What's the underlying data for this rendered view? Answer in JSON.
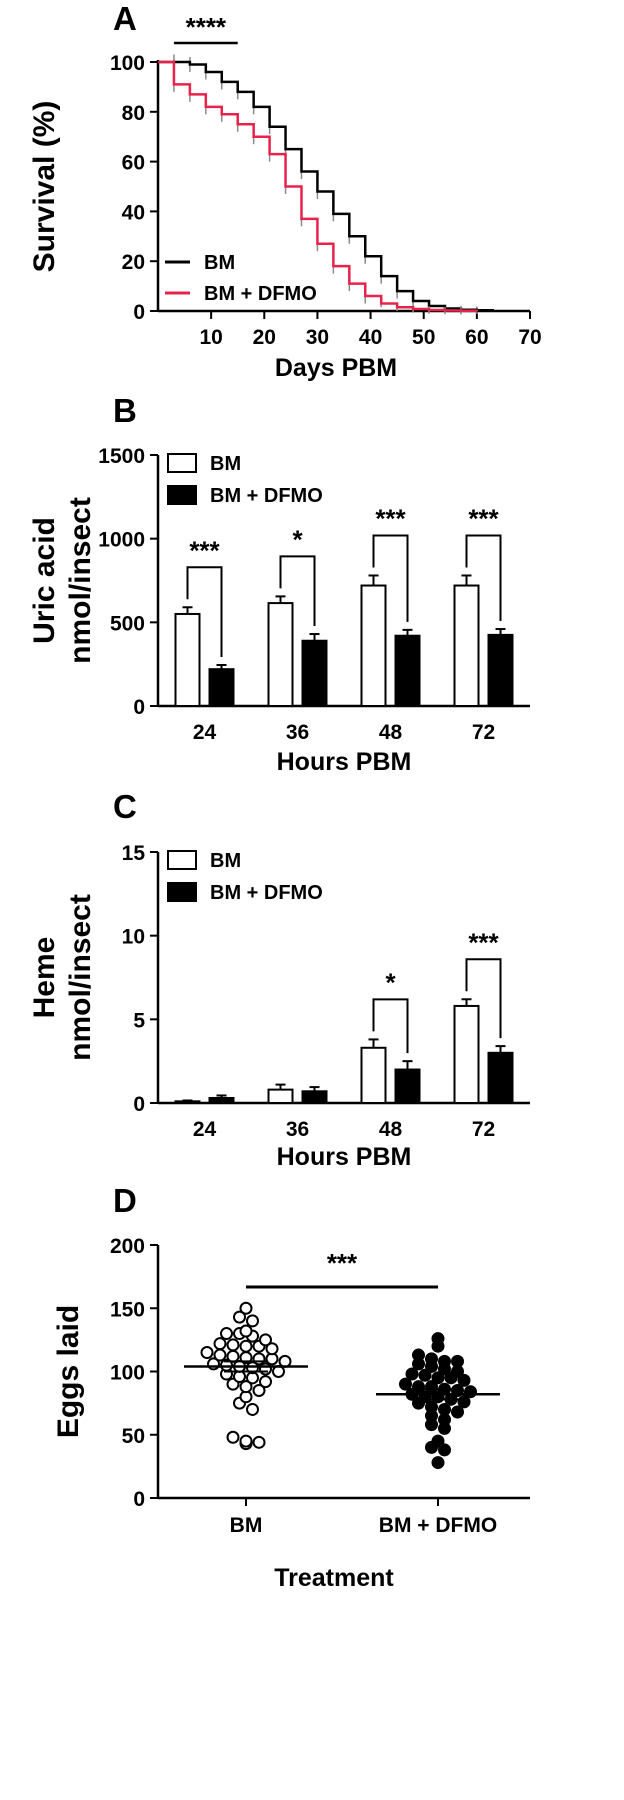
{
  "chart_data": [
    {
      "type": "line",
      "panel": "A",
      "xlabel": "Days PBM",
      "ylabel": "Survival (%)",
      "xlim": [
        0,
        70
      ],
      "ylim": [
        0,
        100
      ],
      "xticks": [
        "10",
        "20",
        "30",
        "40",
        "50",
        "60",
        "70"
      ],
      "yticks": [
        "0",
        "20",
        "40",
        "60",
        "80",
        "100"
      ],
      "legend_position": "bottom-left",
      "significance": {
        "label": "****",
        "x": [
          3,
          15
        ]
      },
      "series": [
        {
          "name": "BM",
          "color": "#000000",
          "x": [
            0,
            3,
            6,
            9,
            12,
            15,
            18,
            21,
            24,
            27,
            30,
            33,
            36,
            39,
            42,
            45,
            48,
            51,
            54,
            57,
            60,
            63
          ],
          "y": [
            100,
            100,
            99,
            96,
            92,
            88,
            82,
            74,
            65,
            56,
            48,
            39,
            30,
            22,
            14,
            8,
            4,
            2,
            1,
            0.5,
            0.3,
            0
          ]
        },
        {
          "name": "BM + DFMO",
          "color": "#e8234a",
          "x": [
            0,
            3,
            6,
            9,
            12,
            15,
            18,
            21,
            24,
            27,
            30,
            33,
            36,
            39,
            42,
            45,
            48,
            51,
            54,
            57,
            60
          ],
          "y": [
            100,
            91,
            87,
            82,
            79,
            75,
            70,
            63,
            50,
            37,
            27,
            18,
            11,
            6,
            3,
            1.5,
            0.8,
            0.4,
            0.2,
            0.1,
            0
          ]
        }
      ]
    },
    {
      "type": "bar",
      "panel": "B",
      "xlabel": "Hours PBM",
      "ylabel": [
        "Uric acid",
        "nmol/insect"
      ],
      "categories": [
        "24",
        "36",
        "48",
        "72"
      ],
      "ylim": [
        0,
        1500
      ],
      "yticks": [
        "0",
        "500",
        "1000",
        "1500"
      ],
      "legend_position": "top-left",
      "series": [
        {
          "name": "BM",
          "fill": "#ffffff",
          "values": [
            550,
            615,
            720,
            720
          ],
          "errors": [
            40,
            40,
            60,
            60
          ]
        },
        {
          "name": "BM + DFMO",
          "fill": "#000000",
          "values": [
            220,
            390,
            420,
            425
          ],
          "errors": [
            25,
            40,
            35,
            35
          ]
        }
      ],
      "significance": [
        "***",
        "*",
        "***",
        "***"
      ]
    },
    {
      "type": "bar",
      "panel": "C",
      "xlabel": "Hours PBM",
      "ylabel": [
        "Heme",
        "nmol/insect"
      ],
      "categories": [
        "24",
        "36",
        "48",
        "72"
      ],
      "ylim": [
        0,
        15
      ],
      "yticks": [
        "0",
        "5",
        "10",
        "15"
      ],
      "legend_position": "top-left",
      "series": [
        {
          "name": "BM",
          "fill": "#ffffff",
          "values": [
            0.1,
            0.8,
            3.3,
            5.8
          ],
          "errors": [
            0.05,
            0.3,
            0.5,
            0.4
          ]
        },
        {
          "name": "BM + DFMO",
          "fill": "#000000",
          "values": [
            0.3,
            0.7,
            2.0,
            3.0
          ],
          "errors": [
            0.15,
            0.25,
            0.5,
            0.4
          ]
        }
      ],
      "significance": [
        "",
        "",
        "*",
        "***"
      ]
    },
    {
      "type": "scatter",
      "panel": "D",
      "xlabel": "Treatment",
      "ylabel": "Eggs laid",
      "categories": [
        "BM",
        "BM + DFMO"
      ],
      "ylim": [
        0,
        200
      ],
      "yticks": [
        "0",
        "50",
        "100",
        "150",
        "200"
      ],
      "significance": "***",
      "series": [
        {
          "name": "BM",
          "marker": "open-circle",
          "mean": 104,
          "sem": 4,
          "values": [
            150,
            143,
            140,
            132,
            130,
            130,
            128,
            125,
            122,
            121,
            120,
            120,
            118,
            115,
            113,
            112,
            111,
            110,
            110,
            108,
            106,
            105,
            104,
            103,
            102,
            100,
            98,
            96,
            95,
            92,
            90,
            88,
            85,
            80,
            75,
            70,
            48,
            45,
            44,
            43
          ]
        },
        {
          "name": "BM + DFMO",
          "marker": "filled-circle",
          "mean": 82,
          "sem": 4,
          "values": [
            126,
            120,
            113,
            110,
            108,
            108,
            106,
            104,
            102,
            100,
            98,
            97,
            95,
            95,
            93,
            90,
            88,
            88,
            86,
            85,
            84,
            82,
            80,
            80,
            78,
            76,
            75,
            72,
            70,
            68,
            65,
            62,
            58,
            55,
            45,
            40,
            38,
            28
          ]
        }
      ]
    }
  ]
}
